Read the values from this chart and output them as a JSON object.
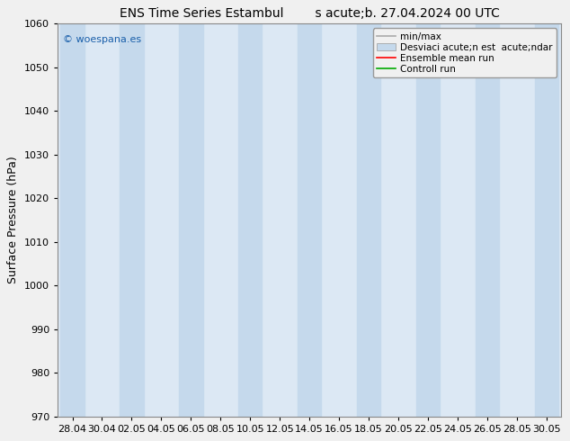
{
  "title_left": "ENS Time Series Estambul",
  "title_right": "s acute;b. 27.04.2024 00 UTC",
  "ylabel": "Surface Pressure (hPa)",
  "ylim": [
    970,
    1060
  ],
  "yticks": [
    970,
    980,
    990,
    1000,
    1010,
    1020,
    1030,
    1040,
    1050,
    1060
  ],
  "xtick_labels": [
    "28.04",
    "30.04",
    "02.05",
    "04.05",
    "06.05",
    "08.05",
    "10.05",
    "12.05",
    "14.05",
    "16.05",
    "18.05",
    "20.05",
    "22.05",
    "24.05",
    "26.05",
    "28.05",
    "30.05"
  ],
  "watermark": "© woespana.es",
  "background_color": "#f0f0f0",
  "plot_bg_color": "#dce8f4",
  "shaded_color": "#c5d9ec",
  "legend_label_0": "min/max",
  "legend_label_1": "Desviaci acute;n est  acute;ndar",
  "legend_label_2": "Ensemble mean run",
  "legend_label_3": "Controll run",
  "title_fontsize": 10,
  "label_fontsize": 9,
  "tick_fontsize": 8,
  "watermark_fontsize": 8,
  "legend_fontsize": 7.5
}
